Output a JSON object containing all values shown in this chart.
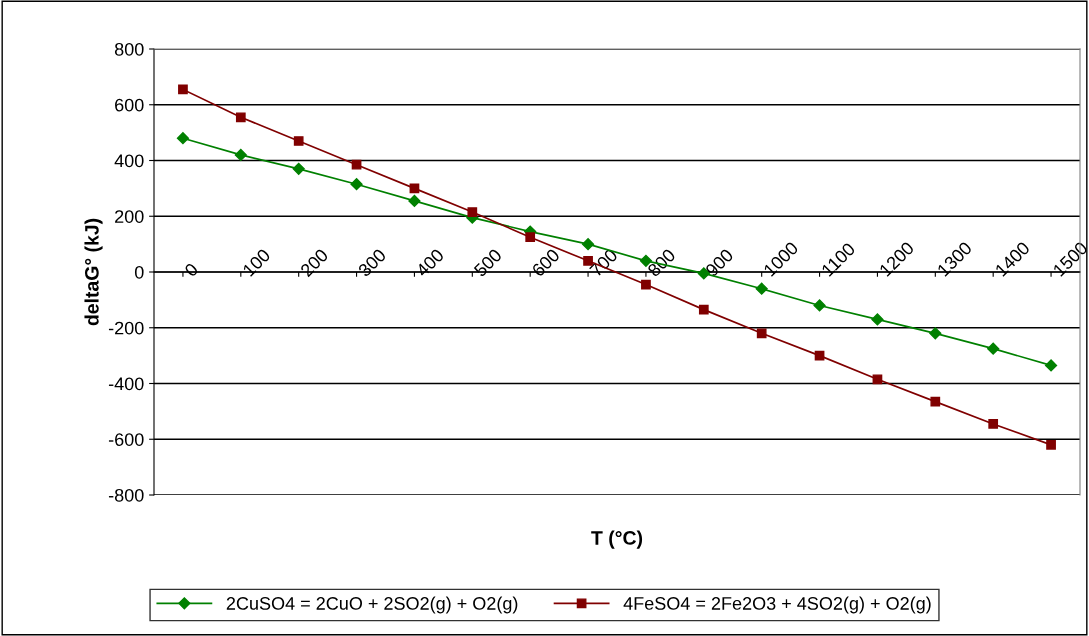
{
  "chart_data": {
    "type": "line",
    "xlabel": "T (°C)",
    "ylabel": "deltaG° (kJ)",
    "categories": [
      "0",
      "100",
      "200",
      "300",
      "400",
      "500",
      "600",
      "700",
      "800",
      "900",
      "1000",
      "1100",
      "1200",
      "1300",
      "1400",
      "1500"
    ],
    "series": [
      {
        "name": "2CuSO4 = 2CuO + 2SO2(g) + O2(g)",
        "color": "#008000",
        "marker": "diamond",
        "values": [
          480,
          420,
          370,
          315,
          255,
          195,
          145,
          100,
          40,
          -5,
          -60,
          -120,
          -170,
          -220,
          -275,
          -335
        ]
      },
      {
        "name": "4FeSO4 = 2Fe2O3 + 4SO2(g) + O2(g)",
        "color": "#800000",
        "marker": "square",
        "values": [
          655,
          555,
          470,
          385,
          300,
          215,
          125,
          40,
          -45,
          -135,
          -220,
          -300,
          -385,
          -465,
          -545,
          -620
        ]
      }
    ],
    "ylim": [
      -800,
      800
    ],
    "yticks": [
      -800,
      -600,
      -400,
      -200,
      0,
      200,
      400,
      600,
      800
    ],
    "grid": "y",
    "legend": "bottom",
    "line_style": "solid"
  }
}
